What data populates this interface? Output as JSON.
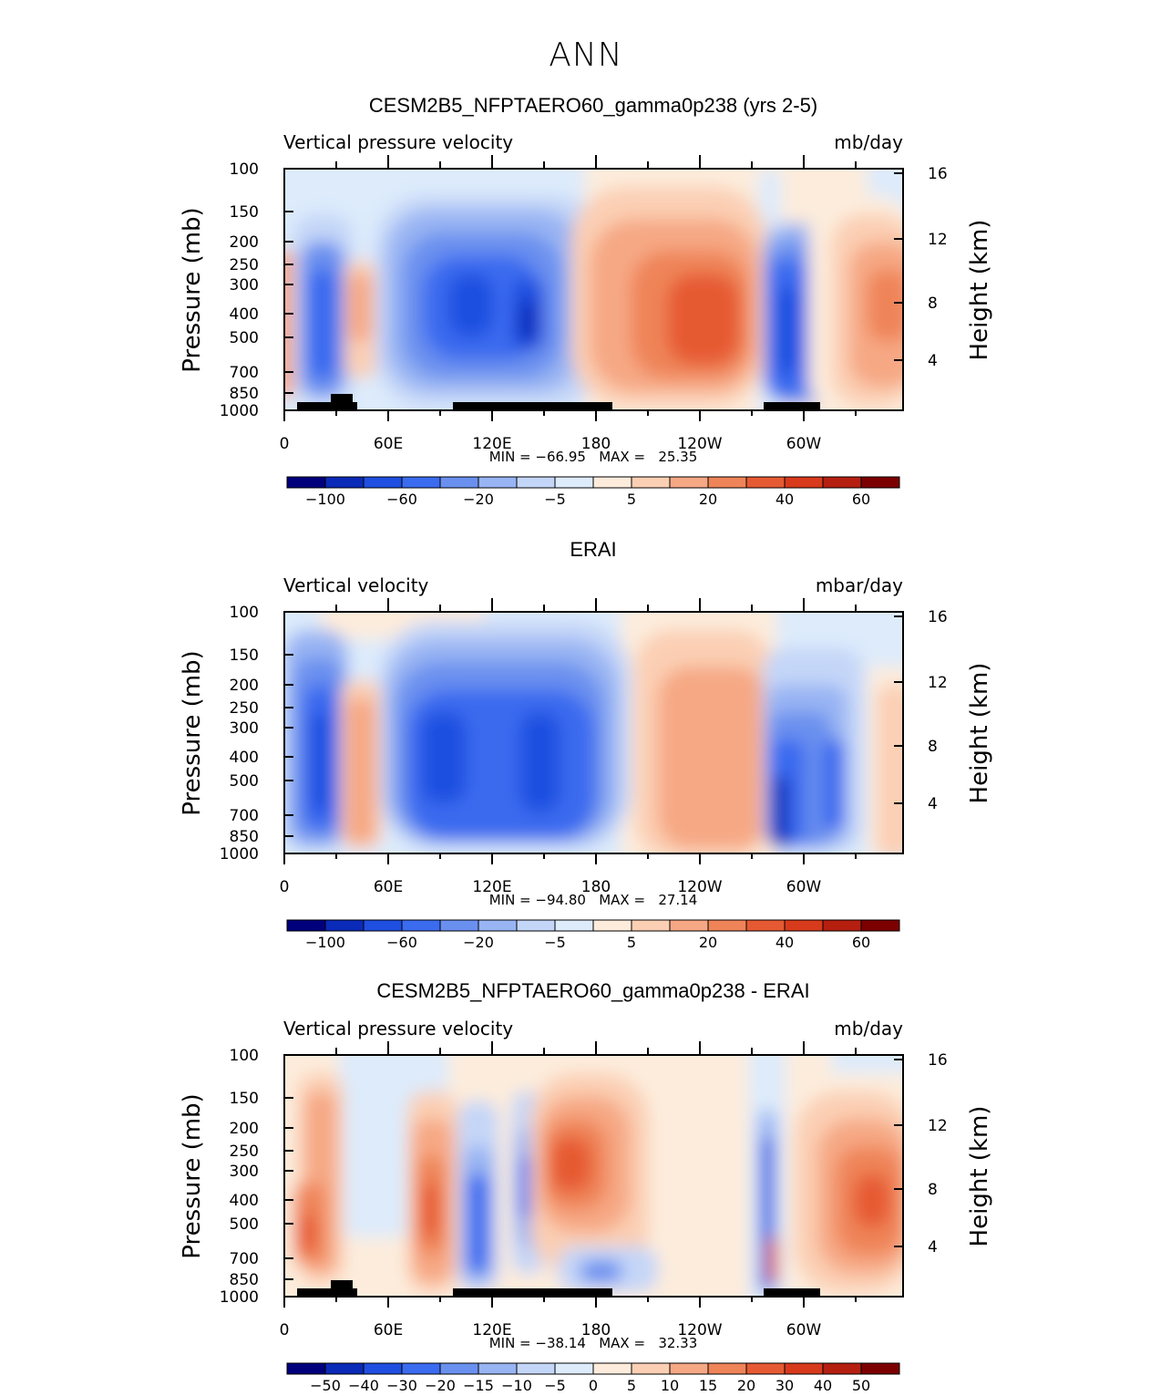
{
  "figure": {
    "season": "ANN"
  },
  "colors": {
    "palette": [
      "#00007d",
      "#0a2ab8",
      "#1f4fe0",
      "#3b6bef",
      "#6a90ef",
      "#98b4f3",
      "#c4d6f8",
      "#ddebfb",
      "#fdecdc",
      "#fbcfb4",
      "#f6a884",
      "#ef8459",
      "#e65a33",
      "#d83a1c",
      "#b51f10",
      "#7d0000"
    ],
    "land": "#000000"
  },
  "chart_data": [
    {
      "type": "heatmap",
      "title": "CESM2B5_NFPTAERO60_gamma0p238 (yrs 2-5)",
      "left_label": "Vertical pressure velocity",
      "right_label": "mb/day",
      "ylabel": "Pressure (mb)",
      "ylabel_right": "Height (km)",
      "x_ticks": [
        "0",
        "60E",
        "120E",
        "180",
        "120W",
        "60W"
      ],
      "y_ticks": [
        "100",
        "150",
        "200",
        "250",
        "300",
        "400",
        "500",
        "700",
        "850",
        "1000"
      ],
      "y_ticks_right": [
        "16",
        "12",
        "8",
        "4"
      ],
      "stats": "MIN = −66.95   MAX =   25.35",
      "min": -66.95,
      "max": 25.35,
      "colorbar_labels": [
        "−100",
        "−60",
        "−20",
        "−5",
        "5",
        "20",
        "40",
        "60"
      ],
      "colorbar_levels": [
        -120,
        -100,
        -80,
        -60,
        -40,
        -20,
        -10,
        -5,
        0,
        5,
        10,
        20,
        30,
        40,
        50,
        60
      ],
      "features": [
        {
          "lon": 25,
          "p": 380,
          "value": -40
        },
        {
          "lon": 45,
          "p": 380,
          "value": 20
        },
        {
          "lon": 105,
          "p": 380,
          "value": -35
        },
        {
          "lon": 140,
          "p": 370,
          "value": -60
        },
        {
          "lon": 170,
          "p": 500,
          "value": -20
        },
        {
          "lon": 240,
          "p": 380,
          "value": 25
        },
        {
          "lon": 285,
          "p": 400,
          "value": -35
        },
        {
          "lon": 345,
          "p": 380,
          "value": 22
        }
      ]
    },
    {
      "type": "heatmap",
      "title": "ERAI",
      "left_label": "Vertical velocity",
      "right_label": "mbar/day",
      "ylabel": "Pressure (mb)",
      "ylabel_right": "Height (km)",
      "x_ticks": [
        "0",
        "60E",
        "120E",
        "180",
        "120W",
        "60W"
      ],
      "y_ticks": [
        "100",
        "150",
        "200",
        "250",
        "300",
        "400",
        "500",
        "700",
        "850",
        "1000"
      ],
      "y_ticks_right": [
        "16",
        "12",
        "8",
        "4"
      ],
      "stats": "MIN = −94.80   MAX =   27.14",
      "min": -94.8,
      "max": 27.14,
      "colorbar_labels": [
        "−100",
        "−60",
        "−20",
        "−5",
        "5",
        "20",
        "40",
        "60"
      ],
      "colorbar_levels": [
        -120,
        -100,
        -80,
        -60,
        -40,
        -20,
        -10,
        -5,
        0,
        5,
        10,
        20,
        30,
        40,
        50,
        60
      ],
      "features": [
        {
          "lon": 22,
          "p": 420,
          "value": -45
        },
        {
          "lon": 45,
          "p": 450,
          "value": 20
        },
        {
          "lon": 95,
          "p": 420,
          "value": -50
        },
        {
          "lon": 150,
          "p": 450,
          "value": -45
        },
        {
          "lon": 240,
          "p": 430,
          "value": 18
        },
        {
          "lon": 285,
          "p": 450,
          "value": -35
        },
        {
          "lon": 310,
          "p": 450,
          "value": -25
        }
      ]
    },
    {
      "type": "heatmap",
      "title": "CESM2B5_NFPTAERO60_gamma0p238 - ERAI",
      "left_label": "Vertical pressure velocity",
      "right_label": "mb/day",
      "ylabel": "Pressure (mb)",
      "ylabel_right": "Height (km)",
      "x_ticks": [
        "0",
        "60E",
        "120E",
        "180",
        "120W",
        "60W"
      ],
      "y_ticks": [
        "100",
        "150",
        "200",
        "250",
        "300",
        "400",
        "500",
        "700",
        "850",
        "1000"
      ],
      "y_ticks_right": [
        "16",
        "12",
        "8",
        "4"
      ],
      "stats": "MIN = −38.14   MAX =   32.33",
      "min": -38.14,
      "max": 32.33,
      "colorbar_labels": [
        "−50",
        "−40",
        "−30",
        "−20",
        "−15",
        "−10",
        "−5",
        "0",
        "5",
        "10",
        "15",
        "20",
        "30",
        "40",
        "50"
      ],
      "colorbar_levels": [
        -60,
        -50,
        -40,
        -30,
        -20,
        -15,
        -10,
        -5,
        0,
        5,
        10,
        15,
        20,
        30,
        40,
        50
      ],
      "features": [
        {
          "lon": 82,
          "p": 400,
          "value": 25
        },
        {
          "lon": 110,
          "p": 400,
          "value": -20
        },
        {
          "lon": 137,
          "p": 330,
          "value": -25
        },
        {
          "lon": 170,
          "p": 290,
          "value": 30
        },
        {
          "lon": 285,
          "p": 420,
          "value": -30
        },
        {
          "lon": 340,
          "p": 400,
          "value": 25
        }
      ]
    }
  ]
}
